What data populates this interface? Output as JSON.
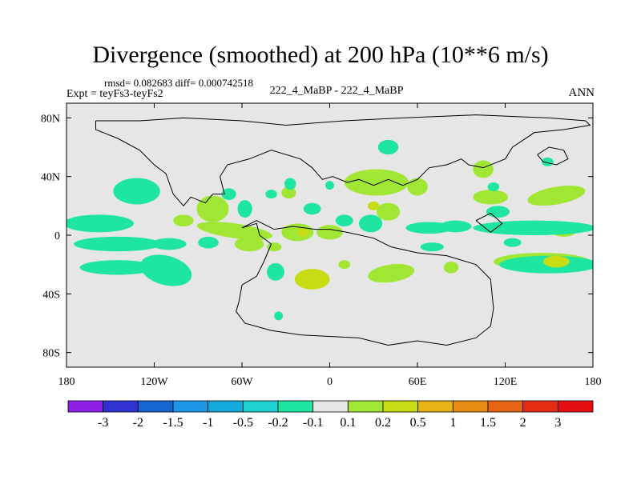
{
  "title": "Divergence (smoothed) at 200 hPa (10**6 m/s)",
  "stats": "rmsd= 0.082683 diff= 0.000742518",
  "experiment": "Expt = teyFs3-teyFs2",
  "case_label": "222_4_MaBP - 222_4_MaBP",
  "season": "ANN",
  "chart_data": {
    "type": "contour_map",
    "variable": "Divergence (smoothed)",
    "level": "200 hPa",
    "units": "10**6 m/s",
    "x_range": [
      -180,
      180
    ],
    "y_range": [
      -90,
      90
    ],
    "x_ticks": [
      {
        "value": -180,
        "label": "180"
      },
      {
        "value": -120,
        "label": "120W"
      },
      {
        "value": -60,
        "label": "60W"
      },
      {
        "value": 0,
        "label": "0"
      },
      {
        "value": 60,
        "label": "60E"
      },
      {
        "value": 120,
        "label": "120E"
      },
      {
        "value": 180,
        "label": "180"
      }
    ],
    "y_ticks": [
      {
        "value": 80,
        "label": "80N"
      },
      {
        "value": 40,
        "label": "40N"
      },
      {
        "value": 0,
        "label": "0"
      },
      {
        "value": -40,
        "label": "40S"
      },
      {
        "value": -80,
        "label": "80S"
      }
    ],
    "colorbar": {
      "levels": [
        "-3",
        "-2",
        "-1.5",
        "-1",
        "-0.5",
        "-0.2",
        "-0.1",
        "0.1",
        "0.2",
        "0.5",
        "1",
        "1.5",
        "2",
        "3"
      ],
      "colors": [
        "#8c1ee6",
        "#3232d2",
        "#1464d2",
        "#1e96e6",
        "#14aadc",
        "#1ed2d2",
        "#1ee6a0",
        "#e6e6e6",
        "#a0e632",
        "#c8dc14",
        "#e6b414",
        "#e68c14",
        "#e66414",
        "#e62d14",
        "#e60f0f"
      ]
    },
    "features": [
      {
        "category": "positive",
        "level": 2,
        "lon": -12,
        "lat": -30,
        "rx": 12,
        "ry": 7,
        "rot": 0
      },
      {
        "category": "positive",
        "level": 1,
        "lon": -12,
        "lat": -30,
        "rx": 7,
        "ry": 4,
        "rot": 0
      },
      {
        "category": "positive",
        "level": 1,
        "lon": -80,
        "lat": 18,
        "rx": 11,
        "ry": 9,
        "rot": 0
      },
      {
        "category": "positive",
        "level": 1,
        "lon": -65,
        "lat": 3,
        "rx": 26,
        "ry": 5,
        "rot": 8
      },
      {
        "category": "positive",
        "level": 1,
        "lon": -55,
        "lat": -6,
        "rx": 10,
        "ry": 5,
        "rot": 0
      },
      {
        "category": "positive",
        "level": 1,
        "lon": -22,
        "lat": 2,
        "rx": 11,
        "ry": 6,
        "rot": 0
      },
      {
        "category": "positive",
        "level": 1,
        "lon": 0,
        "lat": 2,
        "rx": 9,
        "ry": 5,
        "rot": 0
      },
      {
        "category": "positive",
        "level": 2,
        "lon": -18,
        "lat": 2,
        "rx": 4,
        "ry": 3,
        "rot": 0
      },
      {
        "category": "positive",
        "level": 1,
        "lon": 32,
        "lat": 36,
        "rx": 22,
        "ry": 9,
        "rot": 0
      },
      {
        "category": "positive",
        "level": 1,
        "lon": 40,
        "lat": 16,
        "rx": 8,
        "ry": 6,
        "rot": 0
      },
      {
        "category": "positive",
        "level": 2,
        "lon": 30,
        "lat": 20,
        "rx": 4,
        "ry": 3,
        "rot": 0
      },
      {
        "category": "positive",
        "level": 1,
        "lon": 60,
        "lat": 33,
        "rx": 7,
        "ry": 6,
        "rot": 0
      },
      {
        "category": "positive",
        "level": 1,
        "lon": 105,
        "lat": 45,
        "rx": 7,
        "ry": 6,
        "rot": 0
      },
      {
        "category": "positive",
        "level": 1,
        "lon": 110,
        "lat": 26,
        "rx": 12,
        "ry": 5,
        "rot": 0
      },
      {
        "category": "positive",
        "level": 1,
        "lon": 155,
        "lat": 27,
        "rx": 20,
        "ry": 6,
        "rot": -10
      },
      {
        "category": "positive",
        "level": 1,
        "lon": 42,
        "lat": -26,
        "rx": 16,
        "ry": 6,
        "rot": -8
      },
      {
        "category": "positive",
        "level": 1,
        "lon": 145,
        "lat": -18,
        "rx": 33,
        "ry": 6,
        "rot": 0
      },
      {
        "category": "positive",
        "level": 2,
        "lon": 155,
        "lat": -18,
        "rx": 9,
        "ry": 4,
        "rot": 0
      },
      {
        "category": "positive",
        "level": 1,
        "lon": 160,
        "lat": 3,
        "rx": 9,
        "ry": 4,
        "rot": 0
      },
      {
        "category": "positive",
        "level": 1,
        "lon": -28,
        "lat": 29,
        "rx": 5,
        "ry": 4,
        "rot": 0
      },
      {
        "category": "positive",
        "level": 1,
        "lon": -100,
        "lat": 10,
        "rx": 7,
        "ry": 4,
        "rot": 0
      },
      {
        "category": "positive",
        "level": 1,
        "lon": -38,
        "lat": -8,
        "rx": 5,
        "ry": 3,
        "rot": 0
      },
      {
        "category": "positive",
        "level": 1,
        "lon": 83,
        "lat": -22,
        "rx": 5,
        "ry": 4,
        "rot": 0
      },
      {
        "category": "positive",
        "level": 1,
        "lon": 10,
        "lat": -20,
        "rx": 4,
        "ry": 3,
        "rot": 0
      },
      {
        "category": "negative",
        "level": 1,
        "lon": -132,
        "lat": 30,
        "rx": 16,
        "ry": 9,
        "rot": 0
      },
      {
        "category": "negative",
        "level": 1,
        "lon": -158,
        "lat": 8,
        "rx": 24,
        "ry": 6,
        "rot": 0
      },
      {
        "category": "negative",
        "level": 1,
        "lon": -145,
        "lat": -6,
        "rx": 30,
        "ry": 5,
        "rot": 0
      },
      {
        "category": "negative",
        "level": 1,
        "lon": -145,
        "lat": -22,
        "rx": 26,
        "ry": 5,
        "rot": 0
      },
      {
        "category": "negative",
        "level": 1,
        "lon": -112,
        "lat": -24,
        "rx": 18,
        "ry": 10,
        "rot": 15
      },
      {
        "category": "negative",
        "level": 1,
        "lon": -110,
        "lat": -6,
        "rx": 12,
        "ry": 4,
        "rot": 0
      },
      {
        "category": "negative",
        "level": 1,
        "lon": -83,
        "lat": -5,
        "rx": 7,
        "ry": 4,
        "rot": 0
      },
      {
        "category": "negative",
        "level": 1,
        "lon": -69,
        "lat": 28,
        "rx": 5,
        "ry": 4,
        "rot": 0
      },
      {
        "category": "negative",
        "level": 1,
        "lon": -58,
        "lat": 18,
        "rx": 5,
        "ry": 6,
        "rot": 0
      },
      {
        "category": "negative",
        "level": 1,
        "lon": -37,
        "lat": -25,
        "rx": 6,
        "ry": 6,
        "rot": 0
      },
      {
        "category": "negative",
        "level": 1,
        "lon": -35,
        "lat": -55,
        "rx": 3,
        "ry": 3,
        "rot": 0
      },
      {
        "category": "negative",
        "level": 1,
        "lon": -12,
        "lat": 18,
        "rx": 6,
        "ry": 4,
        "rot": 0
      },
      {
        "category": "negative",
        "level": 1,
        "lon": -40,
        "lat": 28,
        "rx": 4,
        "ry": 3,
        "rot": 0
      },
      {
        "category": "negative",
        "level": 1,
        "lon": -27,
        "lat": 35,
        "rx": 4,
        "ry": 4,
        "rot": 0
      },
      {
        "category": "negative",
        "level": 1,
        "lon": 28,
        "lat": 8,
        "rx": 8,
        "ry": 6,
        "rot": 0
      },
      {
        "category": "negative",
        "level": 1,
        "lon": 10,
        "lat": 10,
        "rx": 6,
        "ry": 4,
        "rot": 0
      },
      {
        "category": "negative",
        "level": 1,
        "lon": 40,
        "lat": 60,
        "rx": 7,
        "ry": 5,
        "rot": 0
      },
      {
        "category": "negative",
        "level": 1,
        "lon": 68,
        "lat": 5,
        "rx": 16,
        "ry": 4,
        "rot": 0
      },
      {
        "category": "negative",
        "level": 1,
        "lon": 86,
        "lat": 6,
        "rx": 11,
        "ry": 4,
        "rot": 0
      },
      {
        "category": "negative",
        "level": 1,
        "lon": 70,
        "lat": -8,
        "rx": 8,
        "ry": 3,
        "rot": 0
      },
      {
        "category": "negative",
        "level": 1,
        "lon": 140,
        "lat": 5,
        "rx": 42,
        "ry": 5,
        "rot": 0
      },
      {
        "category": "negative",
        "level": 1,
        "lon": 150,
        "lat": -20,
        "rx": 34,
        "ry": 6,
        "rot": 0
      },
      {
        "category": "negative",
        "level": 1,
        "lon": 115,
        "lat": 16,
        "rx": 8,
        "ry": 4,
        "rot": 0
      },
      {
        "category": "negative",
        "level": 1,
        "lon": 149,
        "lat": 50,
        "rx": 4,
        "ry": 3,
        "rot": 0
      },
      {
        "category": "negative",
        "level": 1,
        "lon": 112,
        "lat": 33,
        "rx": 4,
        "ry": 3,
        "rot": 0
      },
      {
        "category": "negative",
        "level": 1,
        "lon": 0,
        "lat": 34,
        "rx": 3,
        "ry": 3,
        "rot": 0
      },
      {
        "category": "negative",
        "level": 1,
        "lon": 125,
        "lat": -5,
        "rx": 6,
        "ry": 3,
        "rot": 0
      }
    ],
    "outlines": [
      {
        "name": "northern-landmass",
        "points": [
          [
            -160,
            78
          ],
          [
            -130,
            78
          ],
          [
            -100,
            80
          ],
          [
            -60,
            78
          ],
          [
            -30,
            75
          ],
          [
            10,
            78
          ],
          [
            50,
            80
          ],
          [
            100,
            82
          ],
          [
            150,
            80
          ],
          [
            175,
            78
          ],
          [
            178,
            75
          ],
          [
            160,
            72
          ],
          [
            140,
            70
          ],
          [
            125,
            60
          ],
          [
            120,
            52
          ],
          [
            105,
            46
          ],
          [
            95,
            48
          ],
          [
            90,
            52
          ],
          [
            80,
            48
          ],
          [
            68,
            46
          ],
          [
            60,
            38
          ],
          [
            50,
            34
          ],
          [
            40,
            38
          ],
          [
            30,
            34
          ],
          [
            20,
            38
          ],
          [
            12,
            36
          ],
          [
            2,
            40
          ],
          [
            -5,
            38
          ],
          [
            -12,
            46
          ],
          [
            -20,
            52
          ],
          [
            -40,
            58
          ],
          [
            -55,
            52
          ],
          [
            -70,
            48
          ],
          [
            -75,
            40
          ],
          [
            -72,
            28
          ],
          [
            -80,
            28
          ],
          [
            -85,
            22
          ],
          [
            -95,
            26
          ],
          [
            -100,
            20
          ],
          [
            -107,
            28
          ],
          [
            -112,
            42
          ],
          [
            -120,
            48
          ],
          [
            -130,
            58
          ],
          [
            -145,
            66
          ],
          [
            -160,
            72
          ],
          [
            -160,
            78
          ]
        ]
      },
      {
        "name": "southern-continent",
        "points": [
          [
            -60,
            5
          ],
          [
            -50,
            8
          ],
          [
            -48,
            0
          ],
          [
            -40,
            -6
          ],
          [
            -45,
            -18
          ],
          [
            -50,
            -28
          ],
          [
            -60,
            -34
          ],
          [
            -62,
            -45
          ],
          [
            -64,
            -52
          ],
          [
            -58,
            -60
          ],
          [
            -40,
            -65
          ],
          [
            -20,
            -68
          ],
          [
            20,
            -70
          ],
          [
            40,
            -75
          ],
          [
            60,
            -72
          ],
          [
            80,
            -75
          ],
          [
            100,
            -70
          ],
          [
            110,
            -62
          ],
          [
            112,
            -50
          ],
          [
            110,
            -30
          ],
          [
            100,
            -20
          ],
          [
            80,
            -14
          ],
          [
            60,
            -12
          ],
          [
            42,
            -8
          ],
          [
            30,
            -2
          ],
          [
            12,
            2
          ],
          [
            0,
            4
          ],
          [
            -10,
            4
          ],
          [
            -25,
            6
          ],
          [
            -38,
            4
          ],
          [
            -50,
            10
          ],
          [
            -60,
            5
          ]
        ]
      },
      {
        "name": "island-pacific-east",
        "points": [
          [
            142,
            55
          ],
          [
            150,
            60
          ],
          [
            160,
            58
          ],
          [
            163,
            52
          ],
          [
            155,
            48
          ],
          [
            146,
            50
          ],
          [
            142,
            55
          ]
        ]
      },
      {
        "name": "island-central",
        "points": [
          [
            100,
            10
          ],
          [
            110,
            15
          ],
          [
            118,
            8
          ],
          [
            110,
            2
          ],
          [
            100,
            10
          ]
        ]
      }
    ]
  }
}
